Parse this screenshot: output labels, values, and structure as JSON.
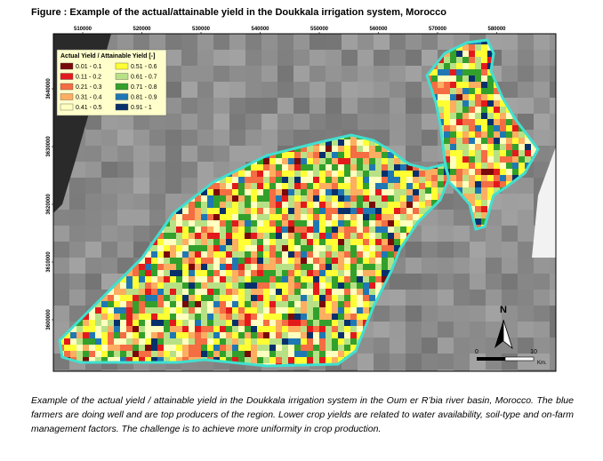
{
  "figure_title": "Figure : Example of the actual/attainable yield in the Doukkala irrigation system, Morocco",
  "map": {
    "x_ticks": [
      510000,
      520000,
      530000,
      540000,
      550000,
      560000,
      570000,
      580000
    ],
    "y_ticks": [
      3640000,
      3630000,
      3620000,
      3610000,
      3600000
    ],
    "legend": {
      "title": "Actual Yield / Attainable Yield [-]",
      "items": [
        {
          "label": "0.01 - 0.1",
          "color": "#7a0a0a"
        },
        {
          "label": "0.11 - 0.2",
          "color": "#e31a1c"
        },
        {
          "label": "0.21 - 0.3",
          "color": "#f46d43"
        },
        {
          "label": "0.31 - 0.4",
          "color": "#fdae61"
        },
        {
          "label": "0.41 - 0.5",
          "color": "#ffffbf"
        },
        {
          "label": "0.51 - 0.6",
          "color": "#ffff33"
        },
        {
          "label": "0.61 - 0.7",
          "color": "#b8e186"
        },
        {
          "label": "0.71 - 0.8",
          "color": "#33a02c"
        },
        {
          "label": "0.81 - 0.9",
          "color": "#1f78b4"
        },
        {
          "label": "0.91 - 1",
          "color": "#08306b"
        }
      ]
    },
    "north_label": "N",
    "scale": {
      "start": "0",
      "end": "10",
      "unit": "Km."
    }
  },
  "caption": "Example of the actual yield / attainable yield in the Doukkala irrigation system in the Oum er R’bia river basin, Morocco. The blue farmers are doing well and are top producers of the region. Lower crop yields are related to water availability, soil-type and on-farm management factors. The challenge is to achieve more uniformity in crop production."
}
